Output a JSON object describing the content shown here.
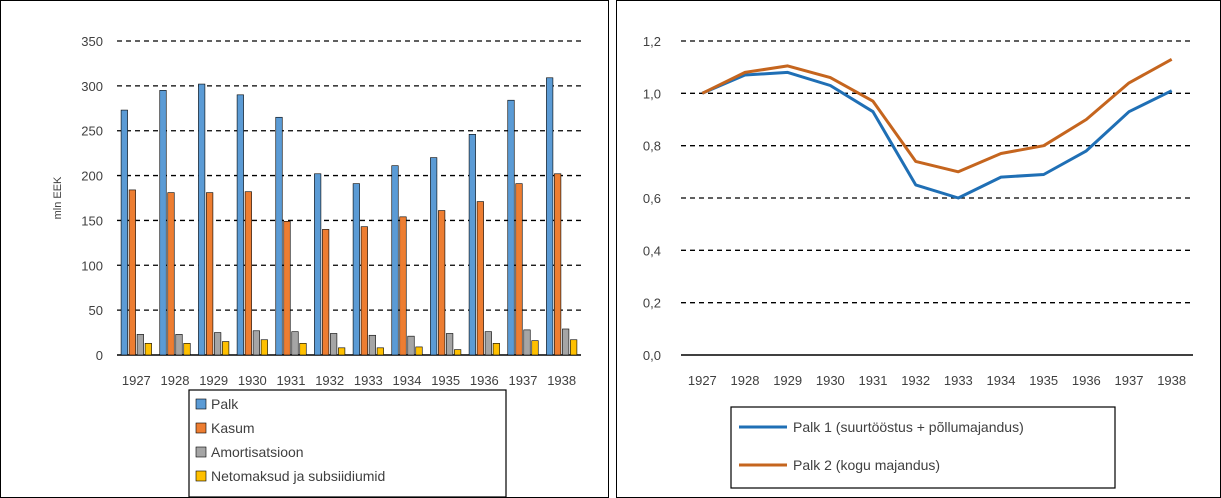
{
  "chart_data": [
    {
      "type": "bar",
      "title": "",
      "xlabel": "",
      "ylabel": "mln EEK",
      "ylim": [
        0,
        350
      ],
      "yticks": [
        0,
        50,
        100,
        150,
        200,
        250,
        300,
        350
      ],
      "grid": "dashed-horizontal",
      "legend": "bottom",
      "categories": [
        "1927",
        "1928",
        "1929",
        "1930",
        "1931",
        "1932",
        "1933",
        "1934",
        "1935",
        "1936",
        "1937",
        "1938"
      ],
      "series": [
        {
          "name": "Palk",
          "color": "#5b9bd5",
          "values": [
            273,
            295,
            302,
            290,
            265,
            202,
            191,
            211,
            220,
            246,
            284,
            309
          ]
        },
        {
          "name": "Kasum",
          "color": "#ed7d31",
          "values": [
            184,
            181,
            181,
            182,
            149,
            140,
            143,
            154,
            161,
            171,
            191,
            202
          ]
        },
        {
          "name": "Amortisatsioon",
          "color": "#a5a5a5",
          "values": [
            23,
            23,
            25,
            27,
            26,
            24,
            22,
            21,
            24,
            26,
            28,
            29
          ]
        },
        {
          "name": "Netomaksud ja subsiidiumid",
          "color": "#ffc000",
          "values": [
            13,
            13,
            15,
            17,
            13,
            8,
            8,
            9,
            6,
            13,
            16,
            17
          ]
        }
      ]
    },
    {
      "type": "line",
      "title": "",
      "xlabel": "",
      "ylabel": "",
      "ylim": [
        0,
        1.2
      ],
      "yticks": [
        "0,0",
        "0,2",
        "0,4",
        "0,6",
        "0,8",
        "1,0",
        "1,2"
      ],
      "grid": "dashed-horizontal",
      "legend": "bottom",
      "categories": [
        "1927",
        "1928",
        "1929",
        "1930",
        "1931",
        "1932",
        "1933",
        "1934",
        "1935",
        "1936",
        "1937",
        "1938"
      ],
      "series": [
        {
          "name": "Palk 1 (suurtööstus + põllumajandus)",
          "color": "#1f6fb5",
          "values": [
            1.0,
            1.07,
            1.08,
            1.03,
            0.93,
            0.65,
            0.6,
            0.68,
            0.69,
            0.78,
            0.93,
            1.01
          ]
        },
        {
          "name": "Palk 2 (kogu majandus)",
          "color": "#c5651e",
          "values": [
            1.0,
            1.08,
            1.105,
            1.06,
            0.97,
            0.74,
            0.7,
            0.77,
            0.8,
            0.9,
            1.04,
            1.13
          ]
        }
      ]
    }
  ]
}
